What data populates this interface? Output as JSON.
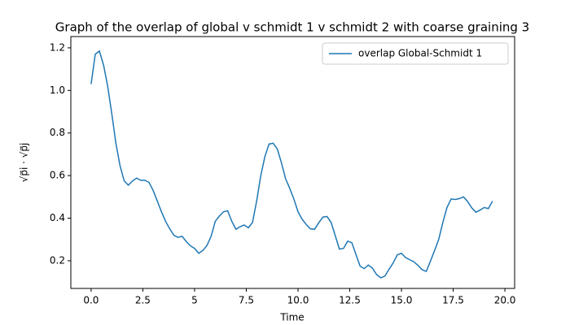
{
  "chart_data": {
    "type": "line",
    "title": "Graph of the overlap of global v schmidt 1 v schmidt 2 with coarse graining 3",
    "xlabel": "Time",
    "ylabel": "√p⃗i · √p⃗j",
    "x": [
      0,
      0.2,
      0.4,
      0.6,
      0.8,
      1,
      1.2,
      1.4,
      1.6,
      1.8,
      2,
      2.2,
      2.4,
      2.6,
      2.8,
      3,
      3.2,
      3.4,
      3.6,
      3.8,
      4,
      4.2,
      4.4,
      4.6,
      4.8,
      5,
      5.2,
      5.4,
      5.6,
      5.8,
      6,
      6.2,
      6.4,
      6.6,
      6.8,
      7,
      7.2,
      7.4,
      7.6,
      7.8,
      8,
      8.2,
      8.4,
      8.6,
      8.8,
      9,
      9.2,
      9.4,
      9.6,
      9.8,
      10,
      10.2,
      10.4,
      10.6,
      10.8,
      11,
      11.2,
      11.4,
      11.6,
      11.8,
      12,
      12.2,
      12.4,
      12.6,
      12.8,
      13,
      13.2,
      13.4,
      13.6,
      13.8,
      14,
      14.2,
      14.4,
      14.6,
      14.8,
      15,
      15.2,
      15.4,
      15.6,
      15.8,
      16,
      16.2,
      16.4,
      16.6,
      16.8,
      17,
      17.2,
      17.4,
      17.6,
      17.8,
      18,
      18.2,
      18.4,
      18.6,
      18.8,
      19,
      19.2,
      19.4
    ],
    "series": [
      {
        "name": "overlap Global-Schmidt 1",
        "color": "#1f77b4",
        "values": [
          1.03,
          1.17,
          1.185,
          1.12,
          1.02,
          0.89,
          0.75,
          0.645,
          0.575,
          0.555,
          0.575,
          0.588,
          0.578,
          0.578,
          0.568,
          0.53,
          0.48,
          0.43,
          0.385,
          0.35,
          0.32,
          0.31,
          0.315,
          0.29,
          0.27,
          0.258,
          0.235,
          0.248,
          0.272,
          0.315,
          0.385,
          0.41,
          0.43,
          0.435,
          0.385,
          0.348,
          0.36,
          0.368,
          0.355,
          0.38,
          0.48,
          0.6,
          0.69,
          0.748,
          0.752,
          0.725,
          0.66,
          0.585,
          0.54,
          0.49,
          0.43,
          0.395,
          0.37,
          0.35,
          0.348,
          0.378,
          0.405,
          0.408,
          0.38,
          0.318,
          0.255,
          0.258,
          0.292,
          0.285,
          0.23,
          0.175,
          0.163,
          0.18,
          0.165,
          0.135,
          0.12,
          0.128,
          0.16,
          0.19,
          0.228,
          0.235,
          0.215,
          0.205,
          0.195,
          0.178,
          0.158,
          0.15,
          0.198,
          0.248,
          0.3,
          0.38,
          0.45,
          0.49,
          0.488,
          0.492,
          0.5,
          0.478,
          0.448,
          0.428,
          0.438,
          0.45,
          0.445,
          0.48
        ]
      }
    ],
    "xlim": [
      -0.98,
      20.47
    ],
    "ylim": [
      0.07,
      1.253
    ],
    "xticks": [
      {
        "value": 0,
        "label": "0.0"
      },
      2.5,
      5.0,
      7.5,
      {
        "value": 10,
        "label": "10.0"
      },
      12.5,
      {
        "value": 15,
        "label": "15.0"
      },
      17.5,
      {
        "value": 20,
        "label": "20.0"
      }
    ],
    "yticks": [
      0.2,
      0.4,
      0.6,
      0.8,
      {
        "value": 1,
        "label": "1.0"
      },
      1.2
    ],
    "grid": false,
    "legend": "upper-right"
  }
}
